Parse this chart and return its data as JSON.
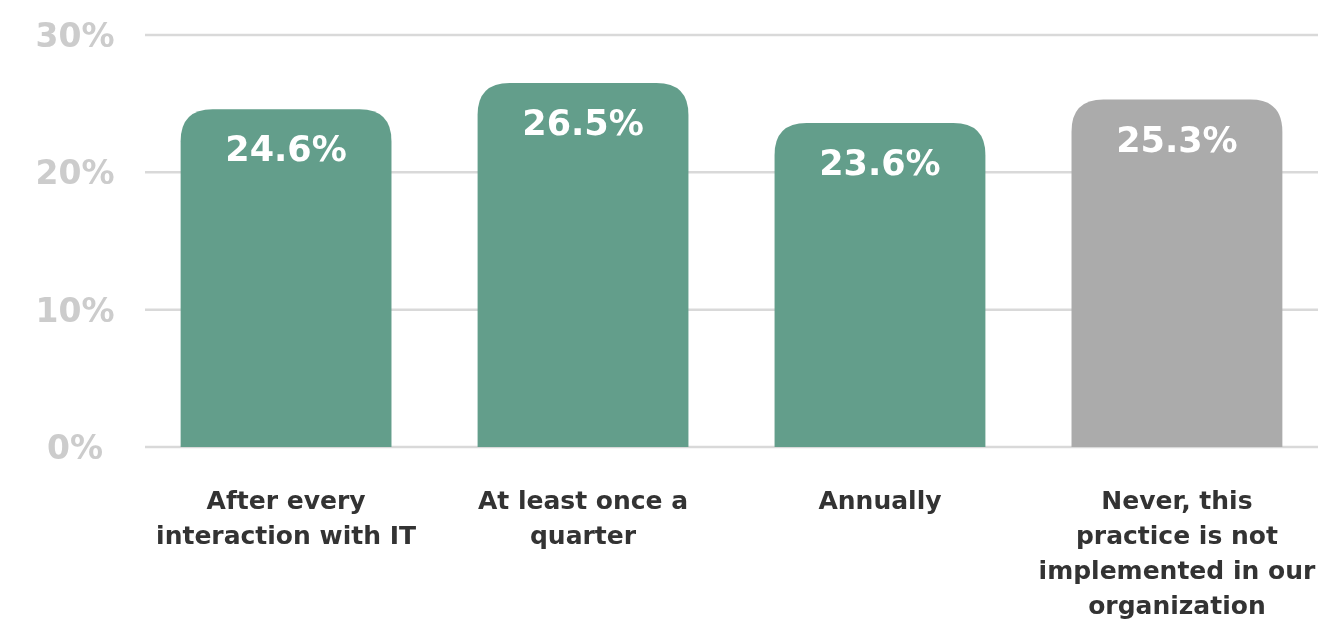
{
  "chart_data": {
    "type": "bar",
    "categories": [
      "After every interaction with IT",
      "At least once a quarter",
      "Annually",
      "Never, this practice is not implemented in our organization"
    ],
    "values": [
      24.6,
      26.5,
      23.6,
      25.3
    ],
    "colors": [
      "#639e8b",
      "#639e8b",
      "#639e8b",
      "#ababab"
    ],
    "value_labels": [
      "24.6%",
      "26.5%",
      "23.6%",
      "25.3%"
    ],
    "ylim": [
      0,
      30
    ],
    "yticks": [
      {
        "value": 0,
        "label": "0%"
      },
      {
        "value": 10,
        "label": "10%"
      },
      {
        "value": 20,
        "label": "20%"
      },
      {
        "value": 30,
        "label": "30%"
      }
    ],
    "grid": "y"
  }
}
